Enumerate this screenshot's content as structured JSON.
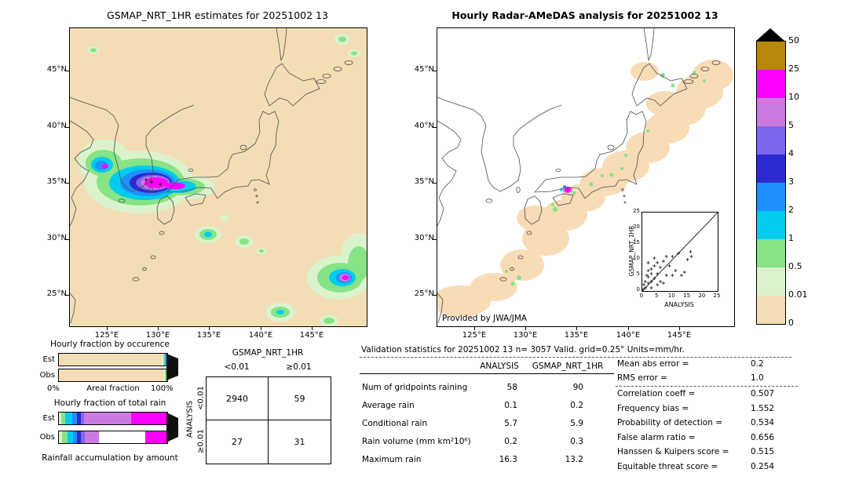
{
  "left_map": {
    "title": "GSMAP_NRT_1HR estimates for 20251002 13",
    "lat_ticks": [
      "45°N",
      "40°N",
      "35°N",
      "30°N",
      "25°N"
    ],
    "lon_ticks": [
      "125°E",
      "130°E",
      "135°E",
      "140°E",
      "145°E"
    ]
  },
  "right_map": {
    "title": "Hourly Radar-AMeDAS analysis for 20251002 13",
    "credit": "Provided by JWA/JMA",
    "lat_ticks": [
      "45°N",
      "40°N",
      "35°N",
      "30°N",
      "25°N"
    ],
    "lon_ticks": [
      "125°E",
      "130°E",
      "135°E",
      "140°E",
      "145°E"
    ]
  },
  "colorbar": {
    "labels": [
      "50",
      "25",
      "10",
      "5",
      "4",
      "3",
      "2",
      "1",
      "0.5",
      "0.01",
      "0"
    ],
    "band_colors": [
      "#b8860b",
      "#ff00ff",
      "#ca7ae0",
      "#7b68ee",
      "#2b2bd0",
      "#1e90ff",
      "#00ccee",
      "#86e386",
      "#daf3cc",
      "#f3ddb5"
    ],
    "overflow_color": "#000000",
    "units": "mm/hr"
  },
  "fractions": {
    "occurrence_title": "Hourly fraction by occurence",
    "total_title": "Hourly fraction of total rain",
    "areal_label": "Areal fraction",
    "pct0": "0%",
    "pct100": "100%",
    "accum_label": "Rainfall accumulation by amount",
    "row_labels": [
      "Est",
      "Obs"
    ],
    "occurrence": {
      "est": [
        [
          "#f3ddb5",
          0.945
        ],
        [
          "#daf3cc",
          0.018
        ],
        [
          "#86e386",
          0.012
        ],
        [
          "#00ccee",
          0.01
        ],
        [
          "#1e90ff",
          0.006
        ],
        [
          "#ca7ae0",
          0.005
        ],
        [
          "#ff00ff",
          0.004
        ]
      ],
      "obs": [
        [
          "#f3ddb5",
          0.962
        ],
        [
          "#daf3cc",
          0.018
        ],
        [
          "#86e386",
          0.01
        ],
        [
          "#00ccee",
          0.01
        ]
      ]
    },
    "total": {
      "est": [
        [
          "#daf3cc",
          0.02
        ],
        [
          "#86e386",
          0.04
        ],
        [
          "#00ccee",
          0.06
        ],
        [
          "#1e90ff",
          0.05
        ],
        [
          "#2b2bd0",
          0.03
        ],
        [
          "#7b68ee",
          0.03
        ],
        [
          "#ca7ae0",
          0.44
        ],
        [
          "#ff00ff",
          0.33
        ]
      ],
      "obs": [
        [
          "#daf3cc",
          0.03
        ],
        [
          "#86e386",
          0.05
        ],
        [
          "#00ccee",
          0.05
        ],
        [
          "#1e90ff",
          0.04
        ],
        [
          "#2b2bd0",
          0.03
        ],
        [
          "#7b68ee",
          0.04
        ],
        [
          "#ca7ae0",
          0.13
        ],
        [
          "#ffffff",
          0.43
        ],
        [
          "#ff00ff",
          0.2
        ]
      ]
    }
  },
  "contingency": {
    "col_group": "GSMAP_NRT_1HR",
    "row_group": "ANALYSIS",
    "col_labels": [
      "<0.01",
      "≥0.01"
    ],
    "row_labels": [
      "<0.01",
      "≥0.01"
    ],
    "cells": [
      [
        "2940",
        "59"
      ],
      [
        "27",
        "31"
      ]
    ]
  },
  "validation": {
    "title": "Validation statistics for 20251002 13  n= 3057 Valid. grid=0.25°  Units=mm/hr.",
    "col_headers": [
      "ANALYSIS",
      "GSMAP_NRT_1HR"
    ],
    "rows": [
      [
        "Num of gridpoints raining",
        "58",
        "90"
      ],
      [
        "Average rain",
        "0.1",
        "0.2"
      ],
      [
        "Conditional rain",
        "5.7",
        "5.9"
      ],
      [
        "Rain volume (mm km²10⁶)",
        "0.2",
        "0.3"
      ],
      [
        "Maximum rain",
        "16.3",
        "13.2"
      ]
    ],
    "stats": [
      [
        "Mean abs error",
        "0.2"
      ],
      [
        "RMS error",
        "1.0"
      ],
      [
        "Correlation coeff",
        "0.507"
      ],
      [
        "Frequency bias",
        "1.552"
      ],
      [
        "Probability of detection",
        "0.534"
      ],
      [
        "False alarm ratio",
        "0.656"
      ],
      [
        "Hanssen & Kuipers score",
        "0.515"
      ],
      [
        "Equitable threat score",
        "0.254"
      ]
    ]
  },
  "inset": {
    "xlabel": "ANALYSIS",
    "ylabel": "GSMAP_NRT_1HR"
  },
  "chart_data": [
    {
      "type": "heatmap",
      "name": "gsmap-precip-map",
      "title": "GSMAP_NRT_1HR estimates for 20251002 13",
      "units": "mm/hr",
      "xticks": [
        "125°E",
        "130°E",
        "135°E",
        "140°E",
        "145°E"
      ],
      "yticks": [
        "45°N",
        "40°N",
        "35°N",
        "30°N",
        "25°N"
      ],
      "xlim": [
        "121.4°E",
        "150.4°E"
      ],
      "ylim": [
        "22.2°N",
        "48.8°N"
      ],
      "features": [
        "intense rain cluster (>10-25 mm/hr magenta core with small black >50 spots) over southwest Korea, Yellow Sea and Korea Strait ~33-37°N 123-131°E, streak extending east to ~133°E",
        "small light-rain cell near 30°N 133.5°E",
        "rain cluster with magenta/purple core near 25-27.5°N 144-149°E",
        "light rain blob near 23°N 140.5°E and 22.5°N 145°E",
        "small green specks near 47°N 146.5°E and 45.5°N 122.5°E",
        "background 0 mm/hr rendered tan"
      ]
    },
    {
      "type": "heatmap",
      "name": "radar-amedas-map",
      "title": "Hourly Radar-AMeDAS analysis for 20251002 13",
      "units": "mm/hr",
      "credit": "Provided by JWA/JMA",
      "features": [
        "trace-rain (0-0.01 tan) diagonal band from the Nansei islands (~24°N 122°E) along the Pacific side of Japan to east Hokkaido (~45°N 148°E)",
        "small heavy cell (magenta >10 mm/hr with purple ring) near 34.3°N 132.3°E",
        "scattered green light-rain specks over western Japan, Okinawa area and east Hokkaido",
        "background 0 mm/hr rendered white"
      ]
    },
    {
      "type": "scatter",
      "name": "inset-scatter",
      "xlabel": "ANALYSIS",
      "ylabel": "GSMAP_NRT_1HR",
      "xlim": [
        0,
        25
      ],
      "ylim": [
        0,
        25
      ],
      "ticks": [
        0,
        5,
        10,
        15,
        20,
        25
      ],
      "diagonal": true,
      "marker": "+",
      "points": [
        [
          0.3,
          0.5
        ],
        [
          0.5,
          2
        ],
        [
          1,
          1
        ],
        [
          1,
          3
        ],
        [
          1.5,
          5
        ],
        [
          2,
          2.5
        ],
        [
          2,
          4.5
        ],
        [
          2,
          6.5
        ],
        [
          2,
          9
        ],
        [
          3,
          1
        ],
        [
          3,
          3
        ],
        [
          3,
          5.5
        ],
        [
          3,
          7
        ],
        [
          4,
          4
        ],
        [
          4,
          8
        ],
        [
          4,
          10.5
        ],
        [
          5,
          2
        ],
        [
          5,
          5.5
        ],
        [
          5,
          9
        ],
        [
          6,
          3
        ],
        [
          6,
          7.5
        ],
        [
          7,
          2.5
        ],
        [
          7,
          9.5
        ],
        [
          8,
          5
        ],
        [
          8,
          11
        ],
        [
          9,
          8
        ],
        [
          10,
          5
        ],
        [
          10,
          11
        ],
        [
          11,
          6.5
        ],
        [
          12,
          12
        ],
        [
          13,
          5
        ],
        [
          14,
          6
        ],
        [
          15,
          10
        ],
        [
          16,
          12.5
        ],
        [
          16.3,
          11
        ]
      ]
    },
    {
      "type": "legend",
      "name": "colorbar",
      "units": "mm/hr",
      "levels_low_to_high": [
        "0",
        "0.01",
        "0.5",
        "1",
        "2",
        "3",
        "4",
        "5",
        "10",
        "25",
        "50"
      ],
      "colors_low_to_high": [
        "#f3ddb5",
        "#daf3cc",
        "#86e386",
        "#00ccee",
        "#1e90ff",
        "#2b2bd0",
        "#7b68ee",
        "#ca7ae0",
        "#ff00ff",
        "#b8860b"
      ],
      "overflow": "#000000"
    },
    {
      "type": "table",
      "name": "contingency-table",
      "columns": [
        "GSMAP_NRT_1HR <0.01",
        "GSMAP_NRT_1HR ≥0.01"
      ],
      "rows": [
        {
          "label": "ANALYSIS <0.01",
          "values": [
            2940,
            59
          ]
        },
        {
          "label": "ANALYSIS ≥0.01",
          "values": [
            27,
            31
          ]
        }
      ]
    },
    {
      "type": "table",
      "name": "validation-statistics",
      "title": "Validation statistics for 20251002 13 n= 3057 Valid. grid=0.25° Units=mm/hr.",
      "columns": [
        "",
        "ANALYSIS",
        "GSMAP_NRT_1HR"
      ],
      "rows": [
        [
          "Num of gridpoints raining",
          58,
          90
        ],
        [
          "Average rain",
          0.1,
          0.2
        ],
        [
          "Conditional rain",
          5.7,
          5.9
        ],
        [
          "Rain volume (mm km²10⁶)",
          0.2,
          0.3
        ],
        [
          "Maximum rain",
          16.3,
          13.2
        ]
      ],
      "scores": {
        "Mean abs error": 0.2,
        "RMS error": 1.0,
        "Correlation coeff": 0.507,
        "Frequency bias": 1.552,
        "Probability of detection": 0.534,
        "False alarm ratio": 0.656,
        "Hanssen & Kuipers score": 0.515,
        "Equitable threat score": 0.254
      }
    },
    {
      "type": "bar",
      "name": "hourly-fraction-by-occurence",
      "orientation": "horizontal-stacked",
      "categories": [
        "Est",
        "Obs"
      ],
      "axis_label": "Areal fraction",
      "axis_range_pct": [
        0,
        100
      ],
      "segments_color_fraction": {
        "Est": [
          [
            "#f3ddb5",
            0.945
          ],
          [
            "#daf3cc",
            0.018
          ],
          [
            "#86e386",
            0.012
          ],
          [
            "#00ccee",
            0.01
          ],
          [
            "#1e90ff",
            0.006
          ],
          [
            "#ca7ae0",
            0.005
          ],
          [
            "#ff00ff",
            0.004
          ]
        ],
        "Obs": [
          [
            "#f3ddb5",
            0.962
          ],
          [
            "#daf3cc",
            0.018
          ],
          [
            "#86e386",
            0.01
          ],
          [
            "#00ccee",
            0.01
          ]
        ]
      }
    },
    {
      "type": "bar",
      "name": "hourly-fraction-of-total-rain",
      "orientation": "horizontal-stacked",
      "categories": [
        "Est",
        "Obs"
      ],
      "caption": "Rainfall accumulation by amount",
      "segments_color_fraction": {
        "Est": [
          [
            "#daf3cc",
            0.02
          ],
          [
            "#86e386",
            0.04
          ],
          [
            "#00ccee",
            0.06
          ],
          [
            "#1e90ff",
            0.05
          ],
          [
            "#2b2bd0",
            0.03
          ],
          [
            "#7b68ee",
            0.03
          ],
          [
            "#ca7ae0",
            0.44
          ],
          [
            "#ff00ff",
            0.33
          ]
        ],
        "Obs": [
          [
            "#daf3cc",
            0.03
          ],
          [
            "#86e386",
            0.05
          ],
          [
            "#00ccee",
            0.05
          ],
          [
            "#1e90ff",
            0.04
          ],
          [
            "#2b2bd0",
            0.03
          ],
          [
            "#7b68ee",
            0.04
          ],
          [
            "#ca7ae0",
            0.13
          ],
          [
            "#ffffff",
            0.43
          ],
          [
            "#ff00ff",
            0.2
          ]
        ]
      }
    }
  ]
}
